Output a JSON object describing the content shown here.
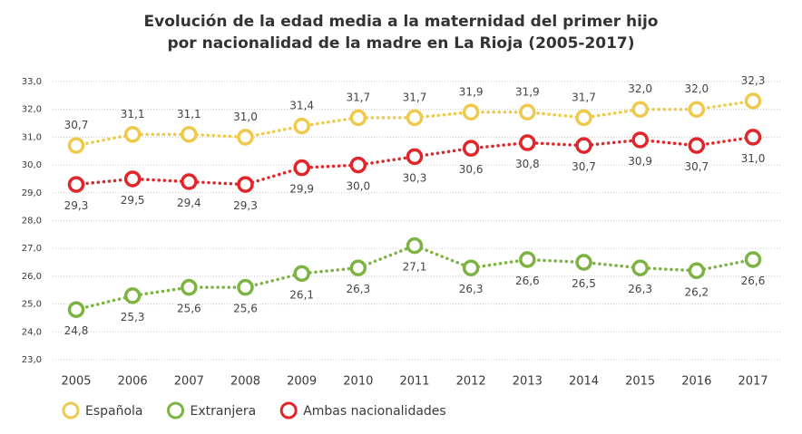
{
  "chart_data": {
    "type": "line",
    "title": [
      "Evolución de la edad media a la maternidad del primer hijo",
      "por nacionalidad de la madre en La Rioja (2005-2017)"
    ],
    "categories": [
      "2005",
      "2006",
      "2007",
      "2008",
      "2009",
      "2010",
      "2011",
      "2012",
      "2013",
      "2014",
      "2015",
      "2016",
      "2017"
    ],
    "series": [
      {
        "name": "Española",
        "color": "#efc94c",
        "values": [
          30.7,
          31.1,
          31.1,
          31.0,
          31.4,
          31.7,
          31.7,
          31.9,
          31.9,
          31.7,
          32.0,
          32.0,
          32.3
        ],
        "value_labels": [
          "30,7",
          "31,1",
          "31,1",
          "31,0",
          "31,4",
          "31,7",
          "31,7",
          "31,9",
          "31,9",
          "31,7",
          "32,0",
          "32,0",
          "32,3"
        ]
      },
      {
        "name": "Extranjera",
        "color": "#7cb342",
        "values": [
          24.8,
          25.3,
          25.6,
          25.6,
          26.1,
          26.3,
          27.1,
          26.3,
          26.6,
          26.5,
          26.3,
          26.2,
          26.6
        ],
        "value_labels": [
          "24,8",
          "25,3",
          "25,6",
          "25,6",
          "26,1",
          "26,3",
          "27,1",
          "26,3",
          "26,6",
          "26,5",
          "26,3",
          "26,2",
          "26,6"
        ]
      },
      {
        "name": "Ambas nacionalidades",
        "color": "#e0262a",
        "values": [
          29.3,
          29.5,
          29.4,
          29.3,
          29.9,
          30.0,
          30.3,
          30.6,
          30.8,
          30.7,
          30.9,
          30.7,
          31.0
        ],
        "value_labels": [
          "29,3",
          "29,5",
          "29,4",
          "29,3",
          "29,9",
          "30,0",
          "30,3",
          "30,6",
          "30,8",
          "30,7",
          "30,9",
          "30,7",
          "31,0"
        ]
      }
    ],
    "ylim": [
      23,
      33
    ],
    "yticks": [
      {
        "value": 23,
        "label": "23,0"
      },
      {
        "value": 24,
        "label": "24,0"
      },
      {
        "value": 25,
        "label": "25,0"
      },
      {
        "value": 26,
        "label": "26,0"
      },
      {
        "value": 27,
        "label": "27,0"
      },
      {
        "value": 28,
        "label": "28,0"
      },
      {
        "value": 29,
        "label": "29,0"
      },
      {
        "value": 30,
        "label": "30,0"
      },
      {
        "value": 31,
        "label": "31,0"
      },
      {
        "value": 32,
        "label": "32,0"
      },
      {
        "value": 33,
        "label": "33,0"
      }
    ],
    "grid": true
  }
}
